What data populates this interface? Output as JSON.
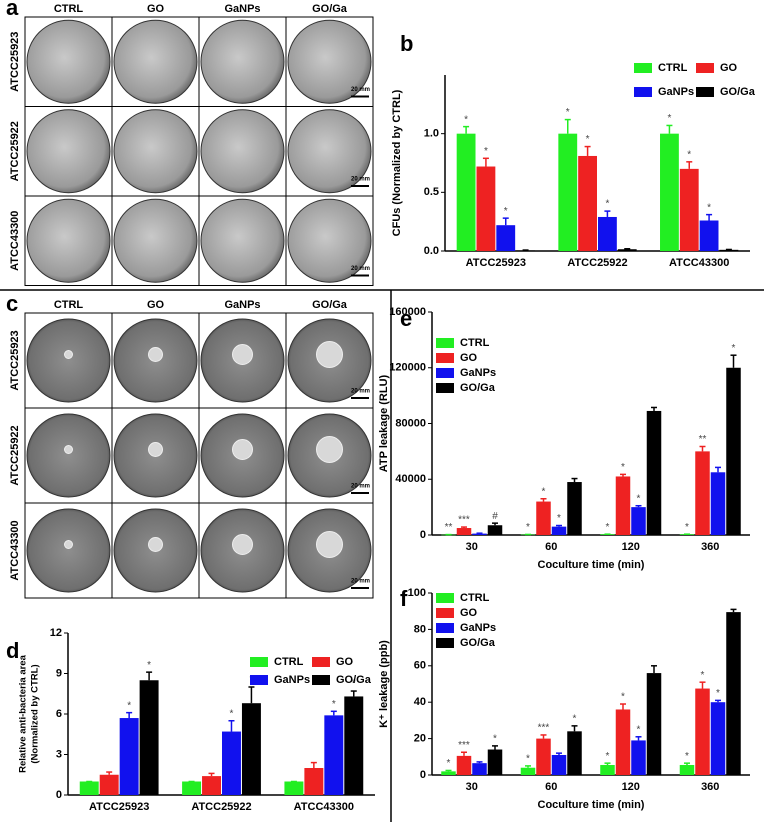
{
  "figure": {
    "panel_a": {
      "panel_label": "a",
      "columns": [
        "CTRL",
        "GO",
        "GaNPs",
        "GO/Ga"
      ],
      "rows": [
        "ATCC25923",
        "ATCC25922",
        "ATCC43300"
      ],
      "scale_bar": "20 mm"
    },
    "panel_c": {
      "panel_label": "c",
      "columns": [
        "CTRL",
        "GO",
        "GaNPs",
        "GO/Ga"
      ],
      "rows": [
        "ATCC25923",
        "ATCC25922",
        "ATCC43300"
      ],
      "scale_bar": "20 mm"
    }
  },
  "chart_data": [
    {
      "type": "bar",
      "panel_label": "b",
      "ylabel": "CFUs (Normalized by CTRL)",
      "categories": [
        "ATCC25923",
        "ATCC25922",
        "ATCC43300"
      ],
      "ylim": [
        0,
        1.5
      ],
      "yticks": [
        {
          "value": 0,
          "label": "0.0"
        },
        {
          "value": 0.5,
          "label": "0.5"
        },
        {
          "value": 1,
          "label": "1.0"
        }
      ],
      "legend": "top-right",
      "legend_columns": 2,
      "series": [
        {
          "name": "CTRL",
          "color": "#22ee22",
          "values": [
            1,
            1,
            1
          ],
          "errors": [
            0.06,
            0.12,
            0.07
          ],
          "significance": [
            "*",
            "*",
            "*"
          ]
        },
        {
          "name": "GO",
          "color": "#ee2222",
          "values": [
            0.72,
            0.81,
            0.7
          ],
          "errors": [
            0.07,
            0.08,
            0.06
          ],
          "significance": [
            "*",
            "*",
            "*"
          ]
        },
        {
          "name": "GaNPs",
          "color": "#1111ee",
          "values": [
            0.22,
            0.29,
            0.26
          ],
          "errors": [
            0.06,
            0.05,
            0.05
          ],
          "significance": [
            "*",
            "*",
            "*"
          ]
        },
        {
          "name": "GO/Ga",
          "color": "#000000",
          "values": [
            0.005,
            0.015,
            0.01
          ],
          "errors": [
            0.003,
            0.004,
            0.003
          ],
          "significance": [
            null,
            null,
            null
          ]
        }
      ]
    },
    {
      "type": "bar",
      "panel_label": "d",
      "ylabel": "Relative anti-bacteria area",
      "ylabel2": "(Normalized by CTRL)",
      "categories": [
        "ATCC25923",
        "ATCC25922",
        "ATCC43300"
      ],
      "ylim": [
        0,
        12
      ],
      "yticks": [
        0,
        3,
        6,
        9,
        12
      ],
      "legend": "top-right",
      "legend_columns": 2,
      "series": [
        {
          "name": "CTRL",
          "color": "#22ee22",
          "values": [
            1,
            1,
            1
          ],
          "errors": [
            0,
            0,
            0
          ],
          "significance": [
            null,
            null,
            null
          ]
        },
        {
          "name": "GO",
          "color": "#ee2222",
          "values": [
            1.5,
            1.4,
            2.0
          ],
          "errors": [
            0.2,
            0.2,
            0.4
          ],
          "significance": [
            null,
            null,
            null
          ]
        },
        {
          "name": "GaNPs",
          "color": "#1111ee",
          "values": [
            5.7,
            4.7,
            5.9
          ],
          "errors": [
            0.4,
            0.8,
            0.3
          ],
          "significance": [
            "*",
            "*",
            "*"
          ]
        },
        {
          "name": "GO/Ga",
          "color": "#000000",
          "values": [
            8.5,
            6.8,
            7.3
          ],
          "errors": [
            0.6,
            1.2,
            0.4
          ],
          "significance": [
            "*",
            "*",
            "*"
          ]
        }
      ]
    },
    {
      "type": "bar",
      "panel_label": "e",
      "ylabel": "ATP leakage (RLU)",
      "xlabel": "Coculture time (min)",
      "categories": [
        "30",
        "60",
        "120",
        "360"
      ],
      "ylim": [
        0,
        160000
      ],
      "yticks": [
        0,
        40000,
        80000,
        120000,
        160000
      ],
      "legend": "top-left",
      "legend_columns": 1,
      "series": [
        {
          "name": "CTRL",
          "color": "#22ee22",
          "values": [
            200,
            300,
            500,
            500
          ],
          "errors": [
            100,
            100,
            100,
            100
          ],
          "significance": [
            "**",
            "*",
            "*",
            "*"
          ]
        },
        {
          "name": "GO",
          "color": "#ee2222",
          "values": [
            5000,
            24000,
            42000,
            60000
          ],
          "errors": [
            700,
            2000,
            1500,
            3500
          ],
          "significance": [
            "***",
            "*",
            "*",
            "**"
          ]
        },
        {
          "name": "GaNPs",
          "color": "#1111ee",
          "values": [
            1000,
            6000,
            20000,
            45000
          ],
          "errors": [
            300,
            800,
            1000,
            3500
          ],
          "significance": [
            null,
            "*",
            "*",
            null
          ]
        },
        {
          "name": "GO/Ga",
          "color": "#000000",
          "values": [
            7000,
            38000,
            89000,
            120000
          ],
          "errors": [
            1500,
            2500,
            2500,
            9000
          ],
          "significance": [
            "#",
            null,
            null,
            "*"
          ]
        }
      ]
    },
    {
      "type": "bar",
      "panel_label": "f",
      "ylabel": "K⁺ leakage (ppb)",
      "xlabel": "Coculture time (min)",
      "categories": [
        "30",
        "60",
        "120",
        "360"
      ],
      "ylim": [
        0,
        100
      ],
      "yticks": [
        0,
        20,
        40,
        60,
        80,
        100
      ],
      "legend": "top-left",
      "legend_columns": 1,
      "series": [
        {
          "name": "CTRL",
          "color": "#22ee22",
          "values": [
            2,
            4,
            5.5,
            5.5
          ],
          "errors": [
            0.5,
            1,
            1,
            1
          ],
          "significance": [
            "*",
            "*",
            "*",
            "*"
          ]
        },
        {
          "name": "GO",
          "color": "#ee2222",
          "values": [
            10.5,
            20,
            36,
            47.5
          ],
          "errors": [
            2,
            2,
            3,
            3.5
          ],
          "significance": [
            "***",
            "***",
            "*",
            "*"
          ]
        },
        {
          "name": "GaNPs",
          "color": "#1111ee",
          "values": [
            6.5,
            11,
            19,
            40
          ],
          "errors": [
            0.7,
            1,
            2,
            1
          ],
          "significance": [
            null,
            null,
            "*",
            "*"
          ]
        },
        {
          "name": "GO/Ga",
          "color": "#000000",
          "values": [
            14,
            24,
            56,
            89.5
          ],
          "errors": [
            2,
            3,
            4,
            1.5
          ],
          "significance": [
            "*",
            "*",
            null,
            null
          ]
        }
      ]
    }
  ]
}
